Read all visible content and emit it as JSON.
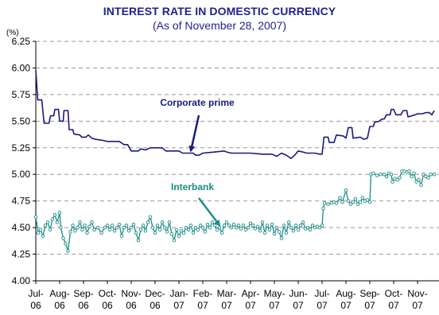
{
  "chart_data": {
    "type": "line",
    "title": "INTEREST RATE IN DOMESTIC CURRENCY",
    "subtitle": "(As of November 28, 2007)",
    "ylabel": "(%)",
    "xlabel": "",
    "ylim": [
      4.0,
      6.25
    ],
    "yticks": [
      "4.00",
      "4.25",
      "4.50",
      "4.75",
      "5.00",
      "5.25",
      "5.50",
      "5.75",
      "6.00",
      "6.25"
    ],
    "categories": [
      "Jul-06",
      "Aug-06",
      "Sep-06",
      "Oct-06",
      "Nov-06",
      "Dec-06",
      "Jan-07",
      "Feb-07",
      "Mar-07",
      "Apr-07",
      "May-07",
      "Jun-07",
      "Jul-07",
      "Aug-07",
      "Sep-07",
      "Oct-07",
      "Nov-07"
    ],
    "category_lines": [
      [
        "Jul-",
        "06"
      ],
      [
        "Aug-",
        "06"
      ],
      [
        "Sep-",
        "06"
      ],
      [
        "Oct-",
        "06"
      ],
      [
        "Nov-",
        "06"
      ],
      [
        "Dec-",
        "06"
      ],
      [
        "Jan-",
        "07"
      ],
      [
        "Feb-",
        "07"
      ],
      [
        "Mar-",
        "07"
      ],
      [
        "Apr-",
        "07"
      ],
      [
        "May-",
        "07"
      ],
      [
        "Jun-",
        "07"
      ],
      [
        "Jul-",
        "07"
      ],
      [
        "Aug-",
        "07"
      ],
      [
        "Sep-",
        "07"
      ],
      [
        "Oct-",
        "07"
      ],
      [
        "Nov-",
        "07"
      ]
    ],
    "grid": "horizontal dashed",
    "series": [
      {
        "name": "Corporate prime",
        "color": "#1a1a80",
        "values": [
          [
            0.0,
            5.98
          ],
          [
            0.08,
            5.7
          ],
          [
            0.25,
            5.7
          ],
          [
            0.35,
            5.48
          ],
          [
            0.55,
            5.48
          ],
          [
            0.62,
            5.55
          ],
          [
            0.75,
            5.55
          ],
          [
            0.8,
            5.61
          ],
          [
            0.95,
            5.61
          ],
          [
            1.0,
            5.5
          ],
          [
            1.15,
            5.5
          ],
          [
            1.18,
            5.6
          ],
          [
            1.35,
            5.6
          ],
          [
            1.4,
            5.42
          ],
          [
            1.55,
            5.42
          ],
          [
            1.6,
            5.38
          ],
          [
            1.85,
            5.37
          ],
          [
            1.92,
            5.35
          ],
          [
            2.1,
            5.35
          ],
          [
            2.2,
            5.37
          ],
          [
            2.35,
            5.34
          ],
          [
            2.5,
            5.33
          ],
          [
            2.8,
            5.32
          ],
          [
            3.0,
            5.31
          ],
          [
            3.5,
            5.31
          ],
          [
            3.7,
            5.28
          ],
          [
            3.85,
            5.28
          ],
          [
            4.0,
            5.22
          ],
          [
            4.3,
            5.22
          ],
          [
            4.4,
            5.24
          ],
          [
            4.6,
            5.23
          ],
          [
            4.8,
            5.25
          ],
          [
            5.3,
            5.25
          ],
          [
            5.45,
            5.22
          ],
          [
            6.0,
            5.22
          ],
          [
            6.15,
            5.2
          ],
          [
            6.6,
            5.2
          ],
          [
            6.7,
            5.18
          ],
          [
            6.85,
            5.18
          ],
          [
            7.0,
            5.2
          ],
          [
            7.5,
            5.21
          ],
          [
            7.9,
            5.22
          ],
          [
            8.0,
            5.21
          ],
          [
            8.2,
            5.2
          ],
          [
            9.0,
            5.2
          ],
          [
            9.5,
            5.19
          ],
          [
            9.9,
            5.19
          ],
          [
            10.1,
            5.17
          ],
          [
            10.3,
            5.2
          ],
          [
            10.5,
            5.18
          ],
          [
            10.7,
            5.15
          ],
          [
            10.85,
            5.18
          ],
          [
            11.0,
            5.22
          ],
          [
            11.2,
            5.21
          ],
          [
            11.35,
            5.2
          ],
          [
            11.7,
            5.2
          ],
          [
            11.9,
            5.19
          ],
          [
            12.0,
            5.19
          ],
          [
            12.08,
            5.35
          ],
          [
            12.25,
            5.35
          ],
          [
            12.3,
            5.3
          ],
          [
            12.5,
            5.3
          ],
          [
            12.6,
            5.37
          ],
          [
            12.9,
            5.36
          ],
          [
            13.0,
            5.34
          ],
          [
            13.1,
            5.44
          ],
          [
            13.25,
            5.44
          ],
          [
            13.3,
            5.34
          ],
          [
            13.6,
            5.35
          ],
          [
            13.75,
            5.33
          ],
          [
            13.9,
            5.34
          ],
          [
            14.0,
            5.45
          ],
          [
            14.15,
            5.45
          ],
          [
            14.2,
            5.49
          ],
          [
            14.4,
            5.5
          ],
          [
            14.5,
            5.52
          ],
          [
            14.6,
            5.52
          ],
          [
            14.7,
            5.56
          ],
          [
            14.85,
            5.56
          ],
          [
            14.9,
            5.61
          ],
          [
            15.0,
            5.61
          ],
          [
            15.1,
            5.56
          ],
          [
            15.3,
            5.56
          ],
          [
            15.4,
            5.6
          ],
          [
            15.55,
            5.6
          ],
          [
            15.6,
            5.54
          ],
          [
            15.9,
            5.56
          ],
          [
            16.0,
            5.57
          ],
          [
            16.2,
            5.57
          ],
          [
            16.35,
            5.58
          ],
          [
            16.5,
            5.58
          ],
          [
            16.6,
            5.56
          ],
          [
            16.7,
            5.6
          ]
        ]
      },
      {
        "name": "Interbank",
        "color": "#1b8c86",
        "values": [
          [
            0.0,
            4.6
          ],
          [
            0.1,
            4.45
          ],
          [
            0.2,
            4.48
          ],
          [
            0.3,
            4.42
          ],
          [
            0.4,
            4.52
          ],
          [
            0.5,
            4.55
          ],
          [
            0.6,
            4.48
          ],
          [
            0.7,
            4.58
          ],
          [
            0.8,
            4.62
          ],
          [
            0.9,
            4.55
          ],
          [
            1.0,
            4.64
          ],
          [
            1.05,
            4.5
          ],
          [
            1.15,
            4.4
          ],
          [
            1.25,
            4.35
          ],
          [
            1.35,
            4.28
          ],
          [
            1.45,
            4.46
          ],
          [
            1.55,
            4.52
          ],
          [
            1.65,
            4.47
          ],
          [
            1.75,
            4.5
          ],
          [
            1.85,
            4.55
          ],
          [
            1.95,
            4.48
          ],
          [
            2.05,
            4.52
          ],
          [
            2.15,
            4.45
          ],
          [
            2.25,
            4.51
          ],
          [
            2.35,
            4.55
          ],
          [
            2.45,
            4.48
          ],
          [
            2.6,
            4.5
          ],
          [
            2.75,
            4.45
          ],
          [
            2.9,
            4.5
          ],
          [
            3.0,
            4.52
          ],
          [
            3.1,
            4.48
          ],
          [
            3.2,
            4.52
          ],
          [
            3.3,
            4.47
          ],
          [
            3.4,
            4.5
          ],
          [
            3.5,
            4.53
          ],
          [
            3.6,
            4.42
          ],
          [
            3.7,
            4.5
          ],
          [
            3.8,
            4.52
          ],
          [
            3.9,
            4.47
          ],
          [
            4.0,
            4.5
          ],
          [
            4.1,
            4.53
          ],
          [
            4.2,
            4.45
          ],
          [
            4.3,
            4.38
          ],
          [
            4.4,
            4.48
          ],
          [
            4.5,
            4.52
          ],
          [
            4.6,
            4.47
          ],
          [
            4.7,
            4.55
          ],
          [
            4.8,
            4.6
          ],
          [
            4.9,
            4.5
          ],
          [
            5.0,
            4.45
          ],
          [
            5.1,
            4.52
          ],
          [
            5.2,
            4.48
          ],
          [
            5.3,
            4.55
          ],
          [
            5.4,
            4.5
          ],
          [
            5.5,
            4.46
          ],
          [
            5.6,
            4.55
          ],
          [
            5.7,
            4.44
          ],
          [
            5.8,
            4.38
          ],
          [
            5.9,
            4.48
          ],
          [
            6.0,
            4.42
          ],
          [
            6.1,
            4.47
          ],
          [
            6.2,
            4.45
          ],
          [
            6.3,
            4.5
          ],
          [
            6.4,
            4.48
          ],
          [
            6.5,
            4.52
          ],
          [
            6.6,
            4.45
          ],
          [
            6.7,
            4.5
          ],
          [
            6.8,
            4.48
          ],
          [
            6.9,
            4.52
          ],
          [
            7.0,
            4.5
          ],
          [
            7.1,
            4.46
          ],
          [
            7.2,
            4.53
          ],
          [
            7.3,
            4.5
          ],
          [
            7.4,
            4.55
          ],
          [
            7.5,
            4.52
          ],
          [
            7.6,
            4.48
          ],
          [
            7.7,
            4.5
          ],
          [
            7.8,
            4.45
          ],
          [
            7.9,
            4.52
          ],
          [
            8.0,
            4.55
          ],
          [
            8.1,
            4.52
          ],
          [
            8.2,
            4.5
          ],
          [
            8.3,
            4.53
          ],
          [
            8.4,
            4.5
          ],
          [
            8.5,
            4.52
          ],
          [
            8.6,
            4.49
          ],
          [
            8.7,
            4.52
          ],
          [
            8.8,
            4.48
          ],
          [
            8.9,
            4.5
          ],
          [
            9.0,
            4.54
          ],
          [
            9.1,
            4.52
          ],
          [
            9.2,
            4.49
          ],
          [
            9.3,
            4.51
          ],
          [
            9.4,
            4.47
          ],
          [
            9.5,
            4.55
          ],
          [
            9.6,
            4.45
          ],
          [
            9.7,
            4.52
          ],
          [
            9.8,
            4.48
          ],
          [
            9.9,
            4.53
          ],
          [
            10.0,
            4.44
          ],
          [
            10.1,
            4.5
          ],
          [
            10.2,
            4.46
          ],
          [
            10.3,
            4.4
          ],
          [
            10.4,
            4.52
          ],
          [
            10.5,
            4.45
          ],
          [
            10.6,
            4.55
          ],
          [
            10.7,
            4.5
          ],
          [
            10.8,
            4.47
          ],
          [
            10.9,
            4.52
          ],
          [
            11.0,
            4.48
          ],
          [
            11.1,
            4.52
          ],
          [
            11.2,
            4.55
          ],
          [
            11.3,
            4.49
          ],
          [
            11.4,
            4.5
          ],
          [
            11.5,
            4.48
          ],
          [
            11.6,
            4.52
          ],
          [
            11.7,
            4.5
          ],
          [
            11.8,
            4.51
          ],
          [
            11.9,
            4.5
          ],
          [
            12.0,
            4.52
          ],
          [
            12.05,
            4.68
          ],
          [
            12.1,
            4.73
          ],
          [
            12.25,
            4.72
          ],
          [
            12.4,
            4.73
          ],
          [
            12.5,
            4.74
          ],
          [
            12.6,
            4.73
          ],
          [
            12.75,
            4.78
          ],
          [
            12.85,
            4.74
          ],
          [
            13.0,
            4.85
          ],
          [
            13.1,
            4.75
          ],
          [
            13.2,
            4.72
          ],
          [
            13.3,
            4.74
          ],
          [
            13.4,
            4.77
          ],
          [
            13.5,
            4.72
          ],
          [
            13.6,
            4.74
          ],
          [
            13.7,
            4.78
          ],
          [
            13.8,
            4.75
          ],
          [
            13.9,
            4.76
          ],
          [
            14.0,
            4.74
          ],
          [
            14.05,
            5.0
          ],
          [
            14.15,
            5.01
          ],
          [
            14.3,
            4.99
          ],
          [
            14.45,
            5.0
          ],
          [
            14.6,
            5.0
          ],
          [
            14.7,
            4.98
          ],
          [
            14.8,
            5.01
          ],
          [
            14.9,
            5.0
          ],
          [
            14.95,
            4.93
          ],
          [
            15.05,
            4.96
          ],
          [
            15.15,
            4.95
          ],
          [
            15.25,
            4.97
          ],
          [
            15.35,
            5.03
          ],
          [
            15.45,
            5.03
          ],
          [
            15.55,
            5.02
          ],
          [
            15.65,
            5.03
          ],
          [
            15.75,
            4.98
          ],
          [
            15.85,
            5.01
          ],
          [
            15.95,
            4.93
          ],
          [
            16.05,
            4.95
          ],
          [
            16.15,
            4.9
          ],
          [
            16.25,
            5.0
          ],
          [
            16.35,
            4.98
          ],
          [
            16.45,
            4.97
          ],
          [
            16.55,
            5.0
          ],
          [
            16.7,
            5.0
          ]
        ]
      }
    ],
    "annotations": [
      {
        "text": "Corporate prime",
        "series": "Corporate prime"
      },
      {
        "text": "Interbank",
        "series": "Interbank"
      }
    ]
  }
}
